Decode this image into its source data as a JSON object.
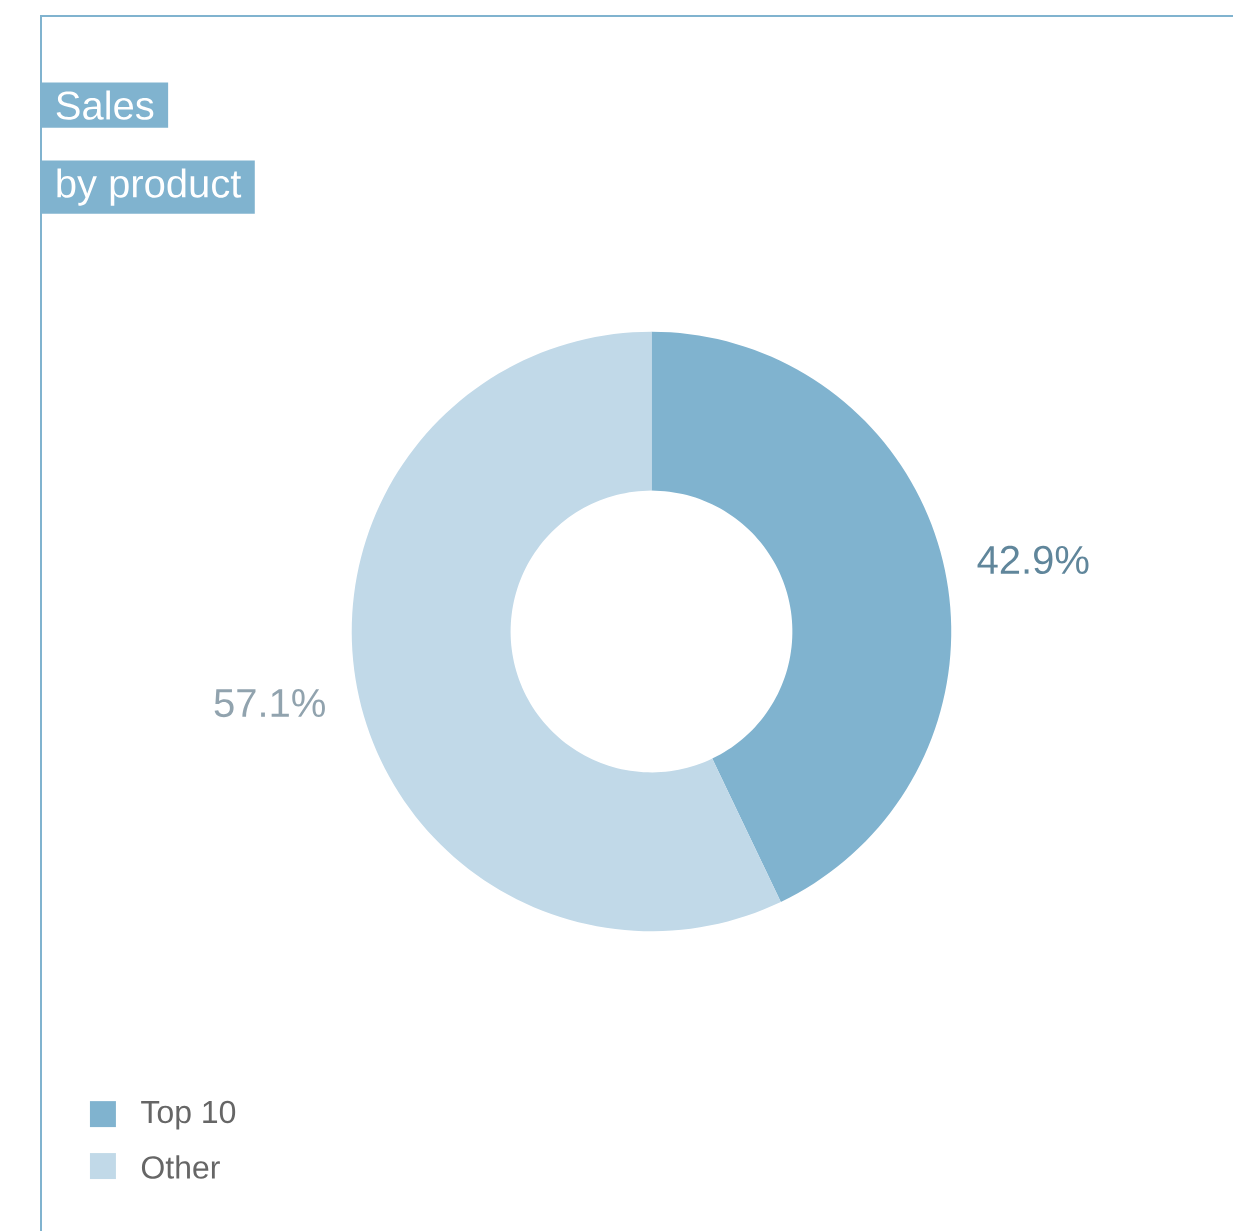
{
  "chart_data": {
    "type": "donut",
    "title": "Sales",
    "subtitle": "by product",
    "categories": [
      "Top 10",
      "Other"
    ],
    "values": [
      42.9,
      57.1
    ],
    "value_labels": [
      "42.9%",
      "57.1%"
    ],
    "colors": [
      "#80b3cf",
      "#c1d9e8"
    ],
    "legend": "bottom left"
  }
}
